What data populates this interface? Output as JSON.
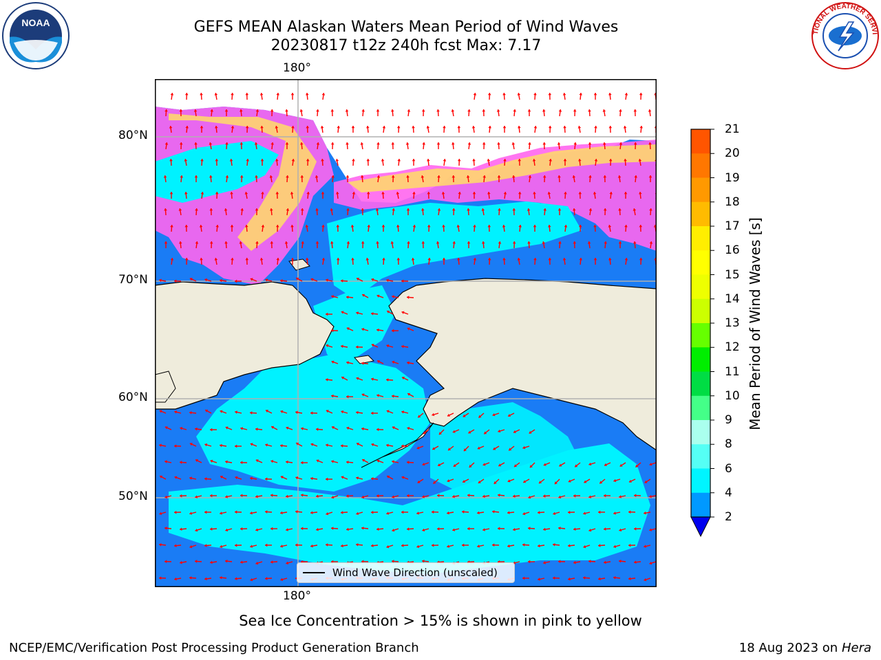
{
  "header": {
    "title_line1": "GEFS MEAN Alaskan Waters Mean Period of Wind Waves",
    "title_line2": "20230817 t12z 240h fcst   Max: 7.17"
  },
  "logos": {
    "left": {
      "text": "NOAA",
      "icon": "noaa-logo"
    },
    "right": {
      "text": "NATIONAL WEATHER SERVICE",
      "icon": "nws-logo"
    }
  },
  "map": {
    "lon_label_top": "180°",
    "lon_label_bottom": "180°",
    "lat_labels": [
      "80°N",
      "70°N",
      "60°N",
      "50°N"
    ],
    "legend_label": "Wind Wave Direction (unscaled)",
    "colors": {
      "land": "#efecdc",
      "ocean_low": "#1a7cf5",
      "ocean_mid": "#00f2ff",
      "ice_pink": "#ff66ee",
      "ice_yellow": "#ffdd66",
      "arrow": "#ff0000"
    }
  },
  "colorbar": {
    "title": "Mean Period of Wind Waves [s]",
    "ticks": [
      "21",
      "20",
      "19",
      "18",
      "17",
      "16",
      "15",
      "14",
      "13",
      "12",
      "11",
      "10",
      "9",
      "8",
      "6",
      "4",
      "2"
    ],
    "colors": [
      "#ff0000",
      "#ff3300",
      "#ff5500",
      "#ff7700",
      "#ff9900",
      "#ffbb00",
      "#ffee00",
      "#ffff00",
      "#eeff00",
      "#ccff00",
      "#66ff00",
      "#00ee00",
      "#00dd44",
      "#44ff88",
      "#aaffee",
      "#55fff5",
      "#00f5ff",
      "#0099ff",
      "#0000ee"
    ]
  },
  "footer": {
    "note": "Sea Ice Concentration > 15% is shown in pink to yellow",
    "credit_left": "NCEP/EMC/Verification Post Processing Product Generation Branch",
    "credit_right_date": "18 Aug 2023 on",
    "credit_right_host": "Hera"
  }
}
